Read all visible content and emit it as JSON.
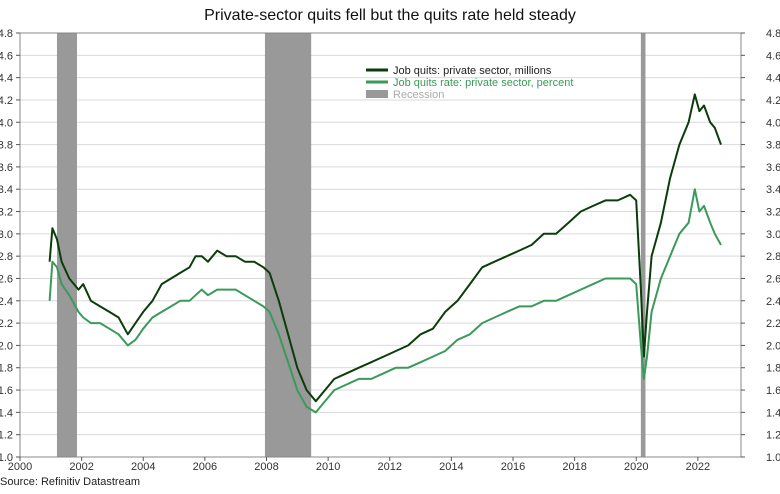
{
  "chart_data": {
    "type": "line",
    "title": "Private-sector quits fell but the quits rate held steady",
    "source": "Source: Refinitiv Datastream",
    "xlim": [
      2000,
      2023.4
    ],
    "ylim": [
      1.0,
      4.8
    ],
    "x_ticks": [
      2000,
      2002,
      2004,
      2006,
      2008,
      2010,
      2012,
      2014,
      2016,
      2018,
      2020,
      2022
    ],
    "x_tick_labels": [
      "2000",
      "2002",
      "2004",
      "2006",
      "2008",
      "2010",
      "2012",
      "2014",
      "2016",
      "2018",
      "2020",
      "2022"
    ],
    "y_ticks": [
      1.0,
      1.2,
      1.4,
      1.6,
      1.8,
      2.0,
      2.2,
      2.4,
      2.6,
      2.8,
      3.0,
      3.2,
      3.4,
      3.6,
      3.8,
      4.0,
      4.2,
      4.4,
      4.6,
      4.8
    ],
    "y_tick_labels": [
      "1.0",
      "1.2",
      "1.4",
      "1.6",
      "1.8",
      "2.0",
      "2.2",
      "2.4",
      "2.6",
      "2.8",
      "3.0",
      "3.2",
      "3.4",
      "3.6",
      "3.8",
      "4.0",
      "4.2",
      "4.4",
      "4.6",
      "4.8"
    ],
    "grid": true,
    "legend_position": "top-center",
    "recessions": [
      {
        "start": 2001.2,
        "end": 2001.85
      },
      {
        "start": 2007.95,
        "end": 2009.45
      },
      {
        "start": 2020.15,
        "end": 2020.3
      }
    ],
    "recession_label": "Recession",
    "recession_color": "#999999",
    "series": [
      {
        "name": "Job quits: private sector, millions",
        "color": "#0b3d0b",
        "x": [
          2000.96,
          2001.05,
          2001.2,
          2001.35,
          2001.6,
          2001.9,
          2002.05,
          2002.3,
          2002.6,
          2002.9,
          2003.2,
          2003.5,
          2003.75,
          2004.0,
          2004.3,
          2004.6,
          2004.9,
          2005.2,
          2005.5,
          2005.7,
          2005.9,
          2006.1,
          2006.4,
          2006.7,
          2007.0,
          2007.3,
          2007.6,
          2007.9,
          2008.1,
          2008.4,
          2008.7,
          2009.0,
          2009.3,
          2009.6,
          2009.9,
          2010.2,
          2010.6,
          2011.0,
          2011.4,
          2011.8,
          2012.2,
          2012.6,
          2013.0,
          2013.4,
          2013.8,
          2014.2,
          2014.6,
          2015.0,
          2015.4,
          2015.8,
          2016.2,
          2016.6,
          2017.0,
          2017.4,
          2017.8,
          2018.2,
          2018.6,
          2019.0,
          2019.4,
          2019.8,
          2020.0,
          2020.15,
          2020.25,
          2020.35,
          2020.5,
          2020.8,
          2021.1,
          2021.4,
          2021.7,
          2021.9,
          2022.05,
          2022.2,
          2022.4,
          2022.55,
          2022.75
        ],
        "values": [
          2.75,
          3.05,
          2.95,
          2.75,
          2.6,
          2.5,
          2.55,
          2.4,
          2.35,
          2.3,
          2.25,
          2.1,
          2.2,
          2.3,
          2.4,
          2.55,
          2.6,
          2.65,
          2.7,
          2.8,
          2.8,
          2.75,
          2.85,
          2.8,
          2.8,
          2.75,
          2.75,
          2.7,
          2.65,
          2.4,
          2.1,
          1.8,
          1.6,
          1.5,
          1.6,
          1.7,
          1.75,
          1.8,
          1.85,
          1.9,
          1.95,
          2.0,
          2.1,
          2.15,
          2.3,
          2.4,
          2.55,
          2.7,
          2.75,
          2.8,
          2.85,
          2.9,
          3.0,
          3.0,
          3.1,
          3.2,
          3.25,
          3.3,
          3.3,
          3.35,
          3.3,
          2.5,
          1.9,
          2.3,
          2.8,
          3.1,
          3.5,
          3.8,
          4.0,
          4.25,
          4.1,
          4.15,
          4.0,
          3.95,
          3.8
        ]
      },
      {
        "name": "Job quits rate: private sector, percent",
        "color": "#3a9a5a",
        "x": [
          2000.96,
          2001.05,
          2001.2,
          2001.35,
          2001.6,
          2001.9,
          2002.05,
          2002.3,
          2002.6,
          2002.9,
          2003.2,
          2003.5,
          2003.75,
          2004.0,
          2004.3,
          2004.6,
          2004.9,
          2005.2,
          2005.5,
          2005.7,
          2005.9,
          2006.1,
          2006.4,
          2006.7,
          2007.0,
          2007.3,
          2007.6,
          2007.9,
          2008.1,
          2008.4,
          2008.7,
          2009.0,
          2009.3,
          2009.6,
          2009.9,
          2010.2,
          2010.6,
          2011.0,
          2011.4,
          2011.8,
          2012.2,
          2012.6,
          2013.0,
          2013.4,
          2013.8,
          2014.2,
          2014.6,
          2015.0,
          2015.4,
          2015.8,
          2016.2,
          2016.6,
          2017.0,
          2017.4,
          2017.8,
          2018.2,
          2018.6,
          2019.0,
          2019.4,
          2019.8,
          2020.0,
          2020.15,
          2020.25,
          2020.35,
          2020.5,
          2020.8,
          2021.1,
          2021.4,
          2021.7,
          2021.9,
          2022.05,
          2022.2,
          2022.4,
          2022.55,
          2022.75
        ],
        "values": [
          2.4,
          2.75,
          2.7,
          2.55,
          2.45,
          2.3,
          2.25,
          2.2,
          2.2,
          2.15,
          2.1,
          2.0,
          2.05,
          2.15,
          2.25,
          2.3,
          2.35,
          2.4,
          2.4,
          2.45,
          2.5,
          2.45,
          2.5,
          2.5,
          2.5,
          2.45,
          2.4,
          2.35,
          2.3,
          2.1,
          1.85,
          1.6,
          1.45,
          1.4,
          1.5,
          1.6,
          1.65,
          1.7,
          1.7,
          1.75,
          1.8,
          1.8,
          1.85,
          1.9,
          1.95,
          2.05,
          2.1,
          2.2,
          2.25,
          2.3,
          2.35,
          2.35,
          2.4,
          2.4,
          2.45,
          2.5,
          2.55,
          2.6,
          2.6,
          2.6,
          2.55,
          2.0,
          1.7,
          1.9,
          2.3,
          2.6,
          2.8,
          3.0,
          3.1,
          3.4,
          3.2,
          3.25,
          3.1,
          3.0,
          2.9
        ]
      }
    ]
  }
}
